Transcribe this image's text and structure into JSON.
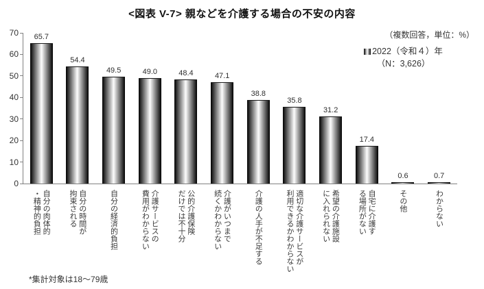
{
  "title": "<図表 V-7> 親などを介護する場合の不安の内容",
  "note": "（複数回答，単位：%）",
  "legend": {
    "series_label": "2022（令和４）年",
    "n_label": "（N：3,626）",
    "swatch": "gradient-bar-swatch"
  },
  "footnote": "*集計対象は18〜79歳",
  "colors": {
    "bar_edge": "#000000",
    "bar_center": "#ffffff",
    "axis": "#808080",
    "text": "#333333",
    "title": "#111111"
  },
  "chart_data": {
    "type": "bar",
    "title": "<図表 V-7> 親などを介護する場合の不安の内容",
    "subtitle": "（複数回答，単位：%）",
    "series": [
      {
        "name": "2022（令和４）年",
        "n": "3,626",
        "values": [
          65.7,
          54.4,
          49.5,
          49.0,
          48.4,
          47.1,
          38.8,
          35.8,
          31.2,
          17.4,
          0.6,
          0.7
        ]
      }
    ],
    "categories": [
      "自分の肉体的\n・精神的負担",
      "自分の時間が\n拘束される",
      "自分の経済的負担",
      "介護サービスの\n費用がわからない",
      "公的介護保険\nだけでは不十分",
      "介護がいつまで\n続くかわからない",
      "介護の人手が不足する",
      "適切な介護サービスが\n利用できるかわからない",
      "希望の介護施設\nに入れられない",
      "自宅に介護す\nる場所がない",
      "その他",
      "わからない"
    ],
    "xlabel": "",
    "ylabel": "",
    "ylim": [
      0,
      70
    ],
    "yticks": [
      0,
      10,
      20,
      30,
      40,
      50,
      60,
      70
    ],
    "grid": false,
    "legend_position": "top-right",
    "bar_style": "horizontal black-white-black gradient (cylinder look)",
    "footnote": "*集計対象は18〜79歳"
  }
}
